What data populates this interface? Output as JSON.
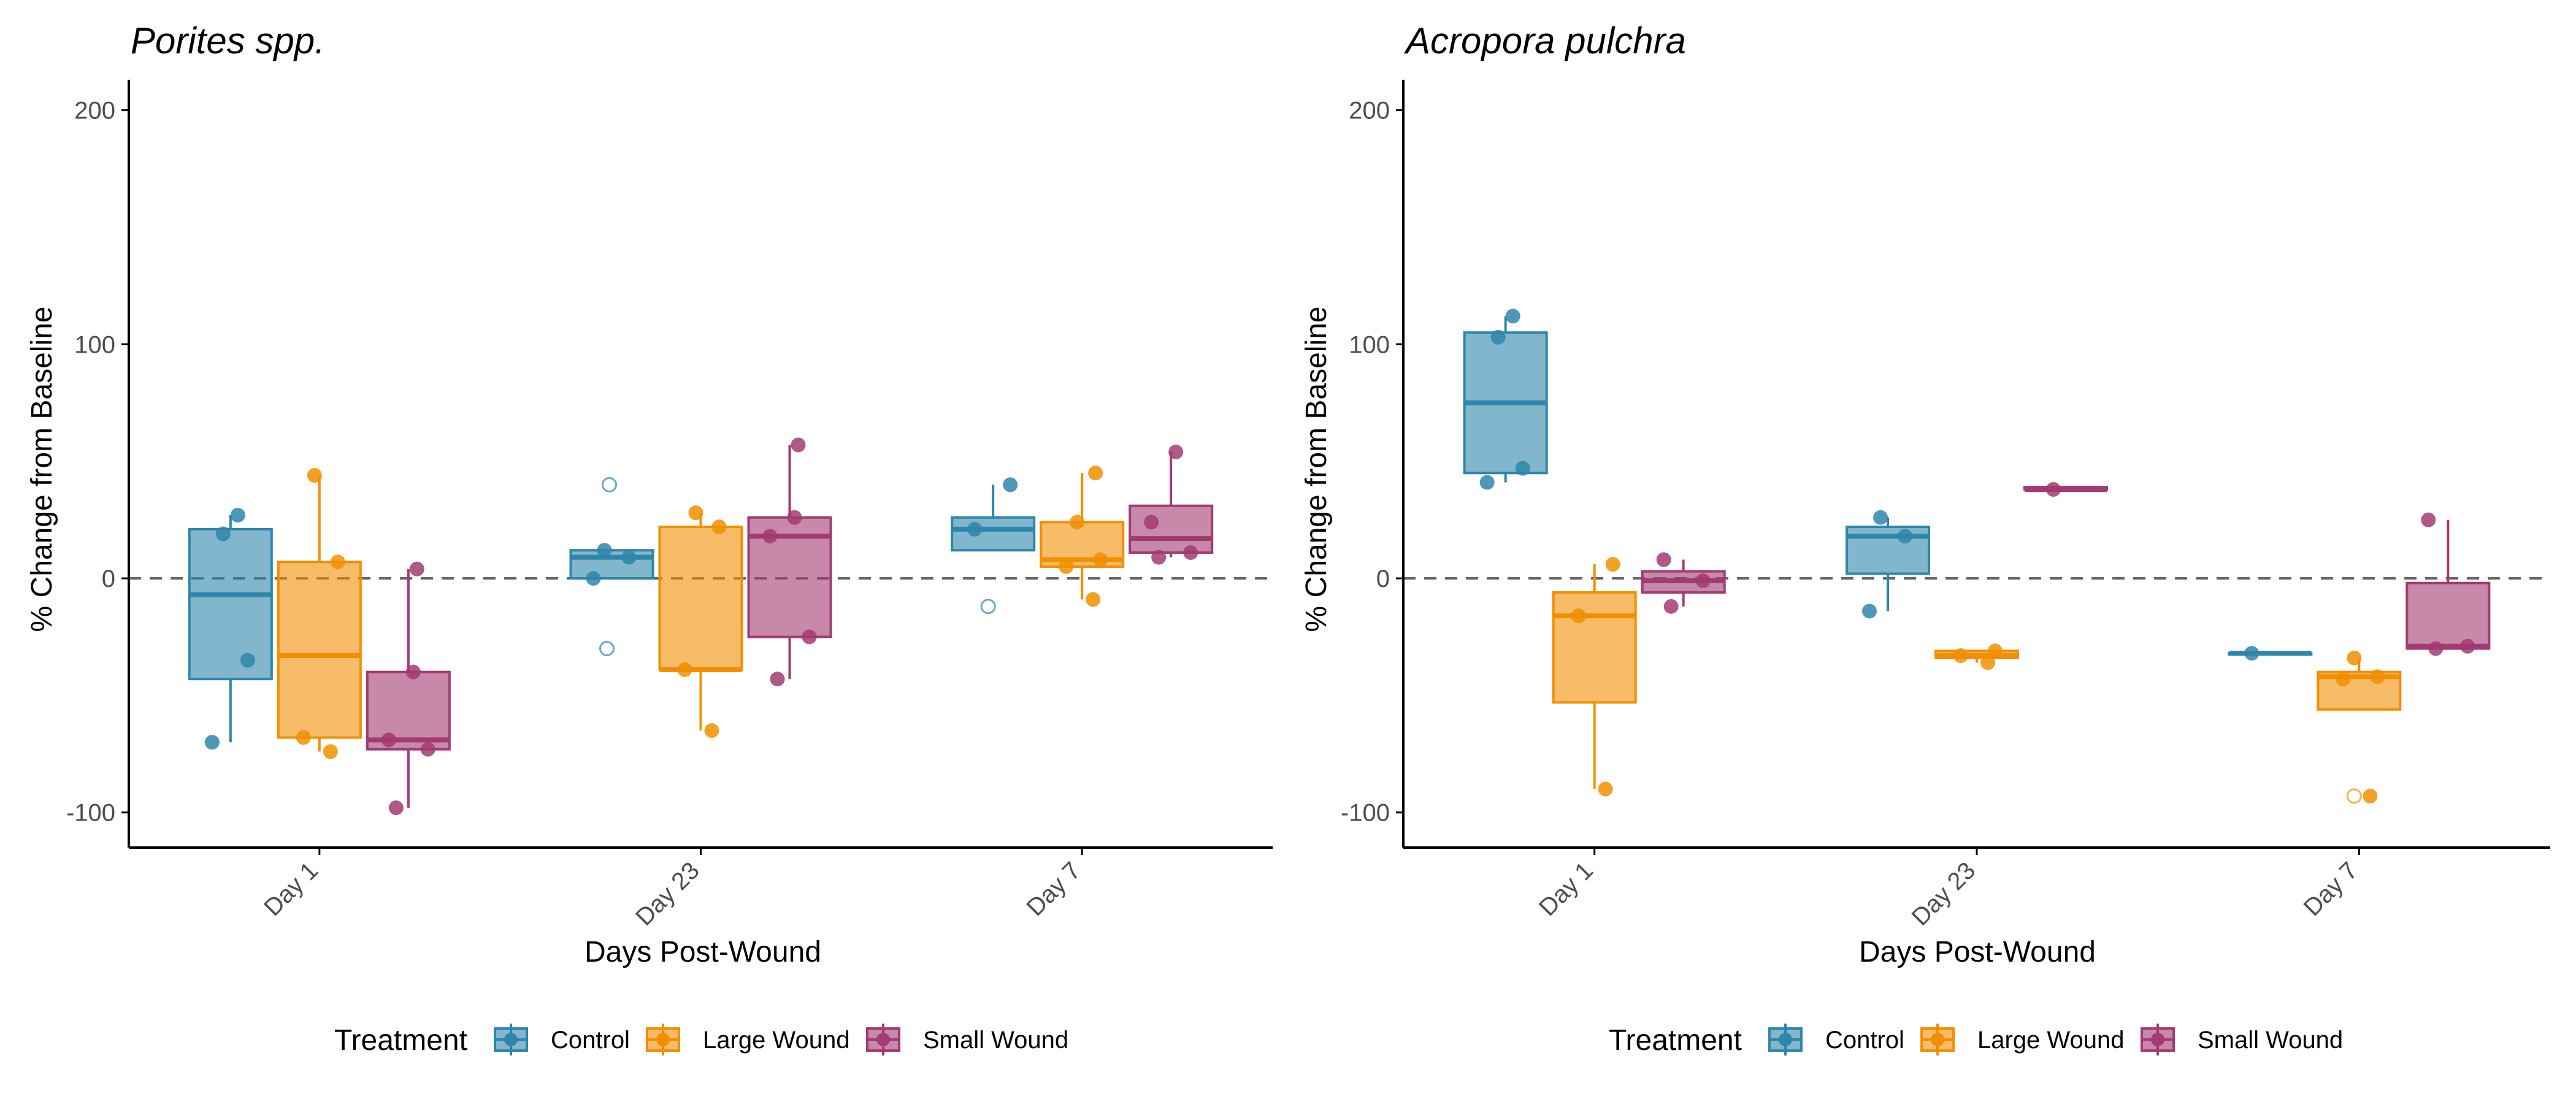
{
  "colors": {
    "Control": "#2E86AB",
    "Large Wound": "#F18F01",
    "Small Wound": "#A23B72",
    "reference_line": "#666666",
    "axis": "#000000"
  },
  "legend": {
    "title": "Treatment",
    "items": [
      "Control",
      "Large Wound",
      "Small Wound"
    ]
  },
  "chart_data": [
    {
      "type": "boxplot",
      "title": "Porites spp.",
      "xlabel": "Days Post-Wound",
      "ylabel": "% Change from Baseline",
      "categories": [
        "Day 1",
        "Day 23",
        "Day 7"
      ],
      "ylim": [
        -115,
        213
      ],
      "yticks": [
        -100,
        0,
        100,
        200
      ],
      "reference_line": 0,
      "groups": [
        "Control",
        "Large Wound",
        "Small Wound"
      ],
      "boxes": [
        {
          "category": "Day 1",
          "group": "Control",
          "q1": -43,
          "median": -7,
          "q3": 21,
          "whisker_low": -70,
          "whisker_high": 27,
          "points": [
            -70,
            -35,
            19,
            27
          ],
          "outliers": []
        },
        {
          "category": "Day 1",
          "group": "Large Wound",
          "q1": -68,
          "median": -33,
          "q3": 7,
          "whisker_low": -74,
          "whisker_high": 44,
          "points": [
            -74,
            -68,
            7,
            44
          ],
          "outliers": []
        },
        {
          "category": "Day 1",
          "group": "Small Wound",
          "q1": -73,
          "median": -69,
          "q3": -40,
          "whisker_low": -98,
          "whisker_high": 4,
          "points": [
            -98,
            -73,
            -69,
            -40,
            4
          ],
          "outliers": []
        },
        {
          "category": "Day 23",
          "group": "Control",
          "q1": 0,
          "median": 9,
          "q3": 12,
          "whisker_low": 0,
          "whisker_high": 12,
          "points": [
            0,
            9,
            12
          ],
          "outliers": [
            -30,
            40
          ]
        },
        {
          "category": "Day 23",
          "group": "Large Wound",
          "q1": -39,
          "median": -39,
          "q3": 22,
          "whisker_low": -65,
          "whisker_high": 28,
          "points": [
            -65,
            -39,
            22,
            28
          ],
          "outliers": []
        },
        {
          "category": "Day 23",
          "group": "Small Wound",
          "q1": -25,
          "median": 18,
          "q3": 26,
          "whisker_low": -43,
          "whisker_high": 57,
          "points": [
            -43,
            -25,
            18,
            26,
            57
          ],
          "outliers": []
        },
        {
          "category": "Day 7",
          "group": "Control",
          "q1": 12,
          "median": 21,
          "q3": 26,
          "whisker_low": 12,
          "whisker_high": 40,
          "points": [
            21,
            40
          ],
          "outliers": [
            -12
          ]
        },
        {
          "category": "Day 7",
          "group": "Large Wound",
          "q1": 5,
          "median": 8,
          "q3": 24,
          "whisker_low": -9,
          "whisker_high": 45,
          "points": [
            -9,
            5,
            8,
            24,
            45
          ],
          "outliers": []
        },
        {
          "category": "Day 7",
          "group": "Small Wound",
          "q1": 11,
          "median": 17,
          "q3": 31,
          "whisker_low": 9,
          "whisker_high": 54,
          "points": [
            9,
            11,
            24,
            54
          ],
          "outliers": []
        }
      ]
    },
    {
      "type": "boxplot",
      "title": "Acropora pulchra",
      "xlabel": "Days Post-Wound",
      "ylabel": "% Change from Baseline",
      "categories": [
        "Day 1",
        "Day 23",
        "Day 7"
      ],
      "ylim": [
        -115,
        213
      ],
      "yticks": [
        -100,
        0,
        100,
        200
      ],
      "reference_line": 0,
      "groups": [
        "Control",
        "Large Wound",
        "Small Wound"
      ],
      "boxes": [
        {
          "category": "Day 1",
          "group": "Control",
          "q1": 45,
          "median": 75,
          "q3": 105,
          "whisker_low": 41,
          "whisker_high": 112,
          "points": [
            41,
            47,
            103,
            112
          ],
          "outliers": []
        },
        {
          "category": "Day 1",
          "group": "Large Wound",
          "q1": -53,
          "median": -16,
          "q3": -6,
          "whisker_low": -90,
          "whisker_high": 6,
          "points": [
            -90,
            -16,
            6
          ],
          "outliers": []
        },
        {
          "category": "Day 1",
          "group": "Small Wound",
          "q1": -6,
          "median": -1,
          "q3": 3,
          "whisker_low": -12,
          "whisker_high": 8,
          "points": [
            -12,
            -1,
            8
          ],
          "outliers": []
        },
        {
          "category": "Day 23",
          "group": "Control",
          "q1": 2,
          "median": 18,
          "q3": 22,
          "whisker_low": -14,
          "whisker_high": 26,
          "points": [
            -14,
            18,
            26
          ],
          "outliers": []
        },
        {
          "category": "Day 23",
          "group": "Large Wound",
          "q1": -34,
          "median": -33,
          "q3": -31,
          "whisker_low": -36,
          "whisker_high": -31,
          "points": [
            -36,
            -33,
            -31
          ],
          "outliers": []
        },
        {
          "category": "Day 23",
          "group": "Small Wound",
          "q1": 38,
          "median": 38,
          "q3": 39,
          "whisker_low": 38,
          "whisker_high": 39,
          "points": [
            38
          ],
          "outliers": []
        },
        {
          "category": "Day 7",
          "group": "Control",
          "q1": -32,
          "median": -32,
          "q3": -32,
          "whisker_low": -32,
          "whisker_high": -32,
          "points": [
            -32
          ],
          "outliers": []
        },
        {
          "category": "Day 7",
          "group": "Large Wound",
          "q1": -56,
          "median": -42,
          "q3": -40,
          "whisker_low": -56,
          "whisker_high": -34,
          "points": [
            -93,
            -43,
            -42,
            -34
          ],
          "outliers": [
            -93
          ]
        },
        {
          "category": "Day 7",
          "group": "Small Wound",
          "q1": -30,
          "median": -29,
          "q3": -2,
          "whisker_low": -30,
          "whisker_high": 25,
          "points": [
            -30,
            -29,
            25
          ],
          "outliers": []
        }
      ]
    }
  ]
}
